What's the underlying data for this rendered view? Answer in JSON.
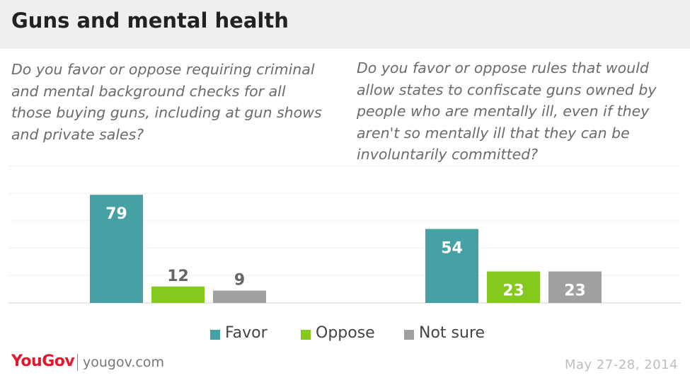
{
  "header": {
    "title": "Guns and mental health"
  },
  "colors": {
    "favor": "#45a1a3",
    "oppose": "#84c91c",
    "not_sure": "#a0a0a0",
    "header_bg": "#efefef"
  },
  "chart_data": [
    {
      "type": "bar",
      "title": "Do you favor or oppose requiring criminal\nand mental background checks for all\nthose buying guns, including at gun shows\nand private sales?",
      "categories": [
        "Favor",
        "Oppose",
        "Not sure"
      ],
      "values": [
        79,
        12,
        9
      ],
      "ylim": [
        0,
        100
      ],
      "grid": true,
      "legend": "bottom"
    },
    {
      "type": "bar",
      "title": "Do you favor or oppose rules that would\nallow states to confiscate guns owned by\npeople who are mentally ill, even if they\naren't so mentally ill that they can be\ninvoluntarily committed?",
      "categories": [
        "Favor",
        "Oppose",
        "Not sure"
      ],
      "values": [
        54,
        23,
        23
      ],
      "ylim": [
        0,
        100
      ],
      "grid": true,
      "legend": "bottom"
    }
  ],
  "legend": {
    "favor": "Favor",
    "oppose": "Oppose",
    "not_sure": "Not sure"
  },
  "footer": {
    "brand": "YouGov",
    "site": "yougov.com",
    "date": "May 27-28, 2014"
  }
}
